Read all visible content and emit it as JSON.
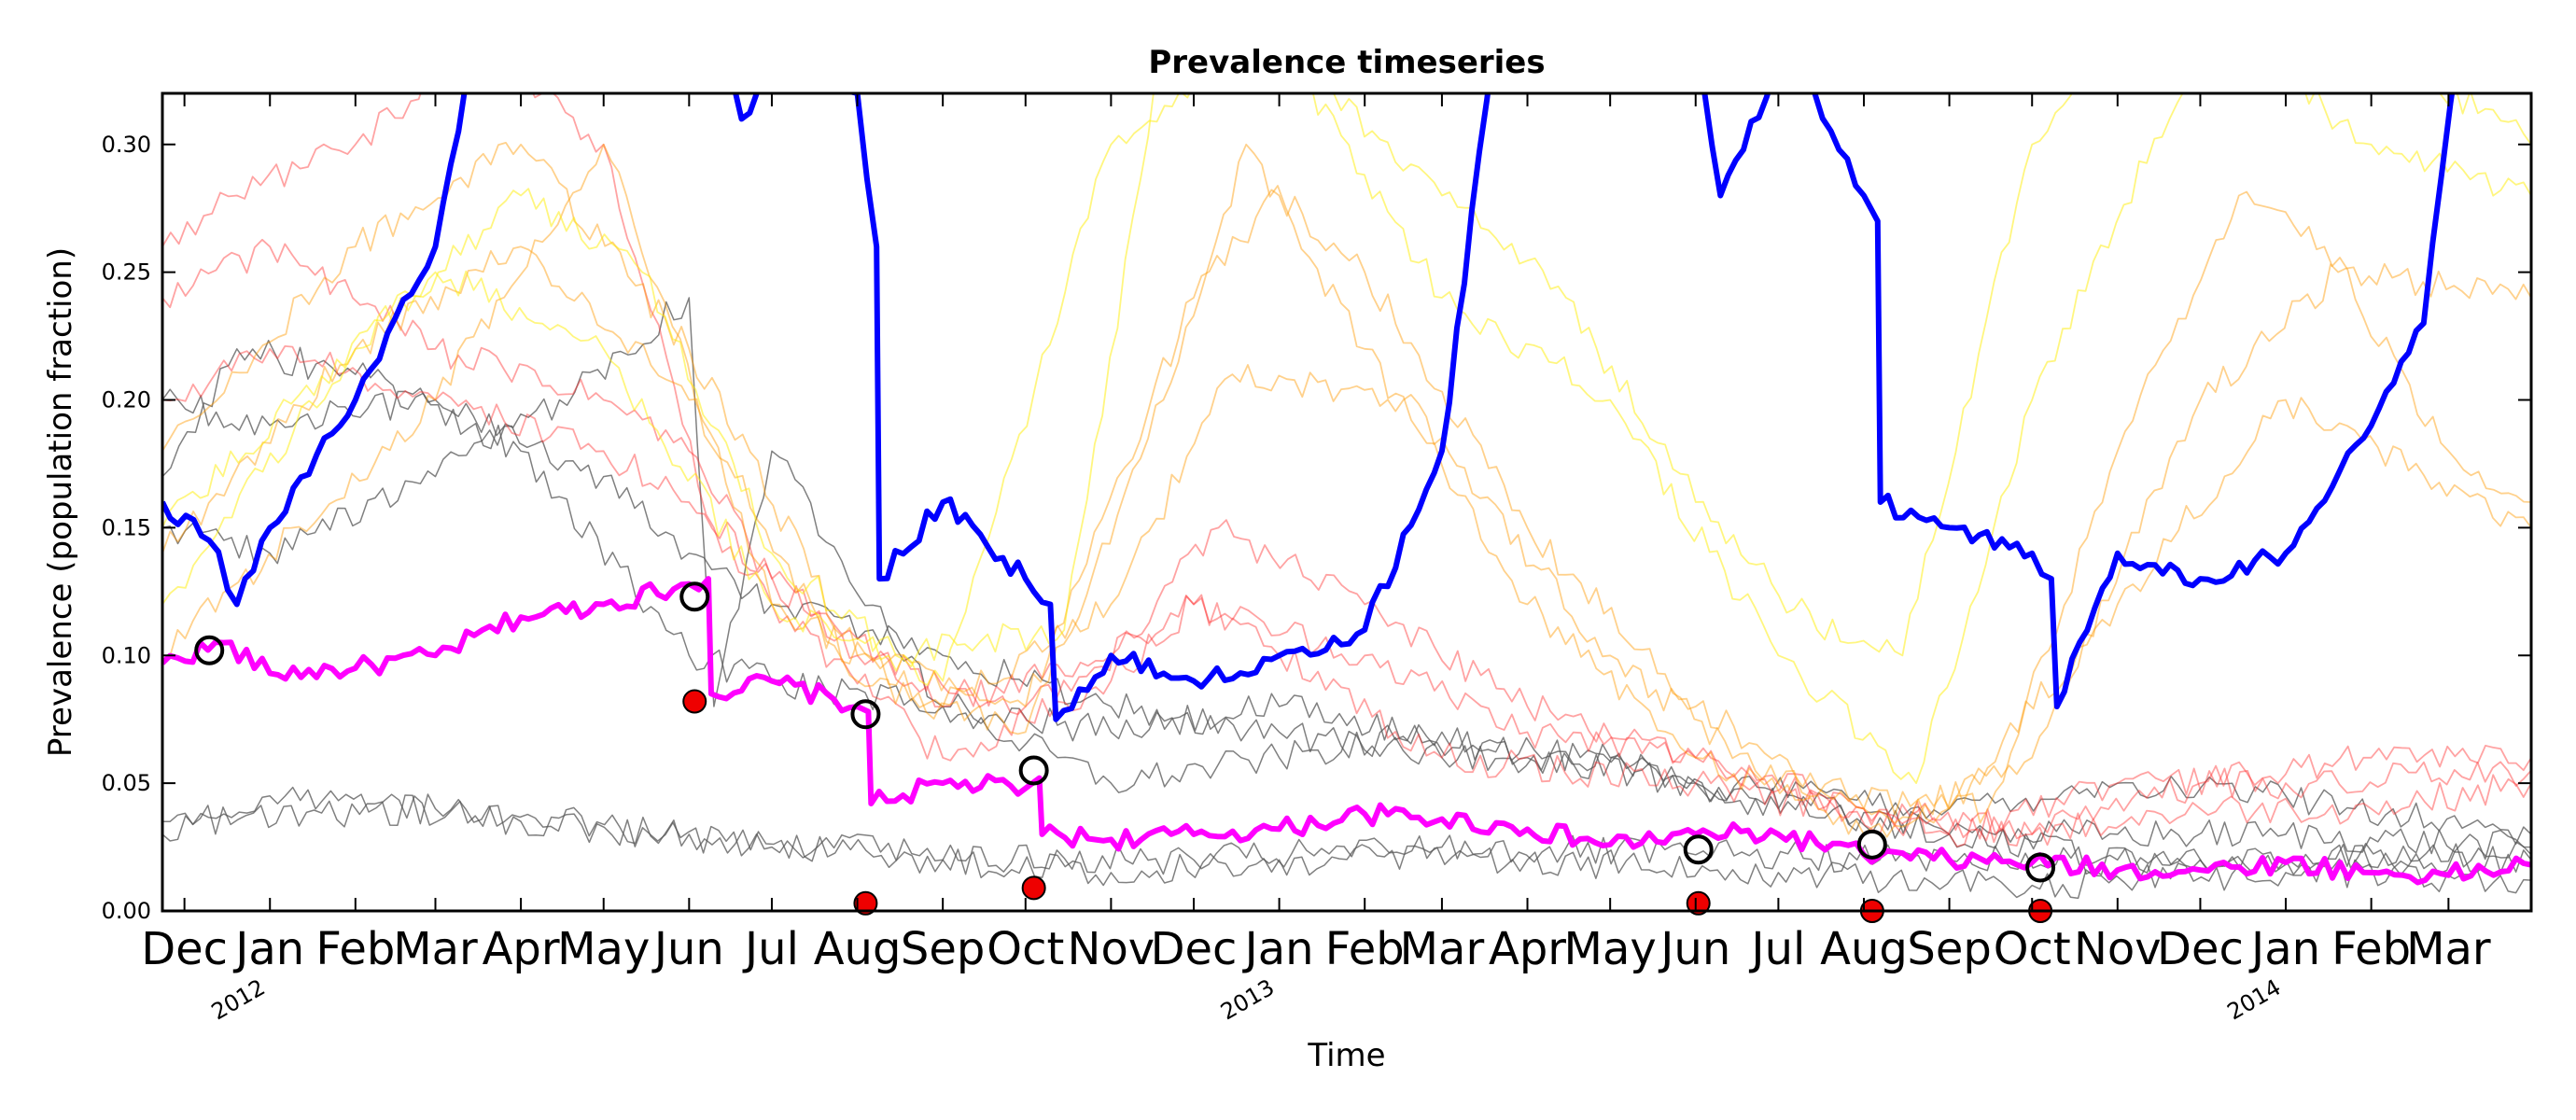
{
  "chart_data": {
    "type": "line",
    "title": "Prevalence timeseries",
    "xlabel": "Time",
    "ylabel": "Prevalence (population fraction)",
    "x_range": [
      "2011-11-23",
      "2014-03-31"
    ],
    "ylim": [
      0,
      0.32
    ],
    "yticks": [
      "0.00",
      "0.05",
      "0.10",
      "0.15",
      "0.20",
      "0.25",
      "0.30"
    ],
    "xtick_dates": [
      "2011-12-01",
      "2012-01-01",
      "2012-02-01",
      "2012-03-01",
      "2012-04-01",
      "2012-05-01",
      "2012-06-01",
      "2012-07-01",
      "2012-08-01",
      "2012-09-01",
      "2012-10-01",
      "2012-11-01",
      "2012-12-01",
      "2013-01-01",
      "2013-02-01",
      "2013-03-01",
      "2013-04-01",
      "2013-05-01",
      "2013-06-01",
      "2013-07-01",
      "2013-08-01",
      "2013-09-01",
      "2013-10-01",
      "2013-11-01",
      "2013-12-01",
      "2014-01-01",
      "2014-02-01",
      "2014-03-01"
    ],
    "xtick_labels": [
      "Dec",
      "Jan",
      "Feb",
      "Mar",
      "Apr",
      "May",
      "Jun",
      "Jul",
      "Aug",
      "Sep",
      "Oct",
      "Nov",
      "Dec",
      "Jan",
      "Feb",
      "Mar",
      "Apr",
      "May",
      "Jun",
      "Jul",
      "Aug",
      "Sep",
      "Oct",
      "Nov",
      "Dec",
      "Jan",
      "Feb",
      "Mar"
    ],
    "year_labels": [
      {
        "date": "2012-01-01",
        "text": "2012"
      },
      {
        "date": "2013-01-01",
        "text": "2013"
      },
      {
        "date": "2014-01-01",
        "text": "2014"
      }
    ],
    "grid": false,
    "legend": "none",
    "colors": {
      "magenta": "#ff00ff",
      "blue": "#0000ff",
      "gray": "#555555",
      "red": "#ff3333",
      "orange": "#ff9900",
      "yellow": "#ffee00",
      "marker_red": "#ee0000"
    },
    "series": [
      {
        "color": "#ff00ff",
        "width": 6,
        "x": [
          "2011-11-23",
          "2011-12-15",
          "2012-01-01",
          "2012-02-01",
          "2012-03-01",
          "2012-04-01",
          "2012-05-01",
          "2012-06-01",
          "2012-06-08",
          "2012-06-09",
          "2012-07-01",
          "2012-08-01",
          "2012-08-05",
          "2012-08-06",
          "2012-09-01",
          "2012-10-01",
          "2012-10-06",
          "2012-10-07",
          "2012-11-01",
          "2012-12-01",
          "2013-01-01",
          "2013-02-01",
          "2013-03-01",
          "2013-04-01",
          "2013-05-01",
          "2013-06-01",
          "2013-07-01",
          "2013-08-01",
          "2013-09-01",
          "2013-10-01",
          "2013-11-01",
          "2013-12-01",
          "2014-01-01",
          "2014-02-01",
          "2014-03-01",
          "2014-03-31"
        ],
        "y": [
          0.097,
          0.105,
          0.093,
          0.095,
          0.1,
          0.115,
          0.12,
          0.128,
          0.13,
          0.085,
          0.09,
          0.08,
          0.078,
          0.042,
          0.05,
          0.048,
          0.052,
          0.03,
          0.028,
          0.03,
          0.032,
          0.038,
          0.036,
          0.032,
          0.026,
          0.03,
          0.03,
          0.022,
          0.02,
          0.019,
          0.016,
          0.016,
          0.019,
          0.015,
          0.014,
          0.018
        ]
      },
      {
        "color": "#0000ff",
        "width": 6,
        "x": [
          "2011-11-23",
          "2011-12-10",
          "2011-12-20",
          "2012-01-01",
          "2012-02-01",
          "2012-03-01",
          "2012-03-15",
          "2012-06-12",
          "2012-06-20",
          "2012-07-05",
          "2012-08-01",
          "2012-08-08",
          "2012-08-09",
          "2012-09-01",
          "2012-10-01",
          "2012-10-10",
          "2012-10-12",
          "2012-11-01",
          "2012-12-01",
          "2013-01-01",
          "2013-02-01",
          "2013-03-01",
          "2013-03-20",
          "2013-06-01",
          "2013-06-10",
          "2013-07-05",
          "2013-08-01",
          "2013-08-06",
          "2013-08-07",
          "2013-09-01",
          "2013-10-01",
          "2013-10-08",
          "2013-10-10",
          "2013-11-01",
          "2013-12-01",
          "2014-01-01",
          "2014-02-01",
          "2014-02-20",
          "2014-03-05"
        ],
        "y": [
          0.16,
          0.145,
          0.12,
          0.15,
          0.2,
          0.26,
          0.34,
          0.34,
          0.31,
          0.34,
          0.32,
          0.26,
          0.13,
          0.16,
          0.13,
          0.12,
          0.075,
          0.1,
          0.09,
          0.1,
          0.11,
          0.18,
          0.34,
          0.34,
          0.28,
          0.34,
          0.28,
          0.27,
          0.16,
          0.15,
          0.14,
          0.13,
          0.08,
          0.14,
          0.13,
          0.14,
          0.19,
          0.23,
          0.34
        ]
      },
      {
        "color": "#555555",
        "width": 1.5,
        "opacity": 0.75,
        "x": [
          "2011-11-23",
          "2011-12-20",
          "2012-02-01",
          "2012-04-01",
          "2012-06-01",
          "2012-07-01",
          "2012-09-01",
          "2012-11-01",
          "2013-01-01",
          "2013-03-01",
          "2013-06-01",
          "2013-09-01",
          "2013-11-01",
          "2014-01-01",
          "2014-03-31"
        ],
        "y": [
          0.17,
          0.22,
          0.21,
          0.18,
          0.1,
          0.09,
          0.08,
          0.05,
          0.06,
          0.07,
          0.05,
          0.03,
          0.03,
          0.03,
          0.025
        ]
      },
      {
        "color": "#555555",
        "width": 1.5,
        "opacity": 0.75,
        "x": [
          "2011-11-23",
          "2012-01-01",
          "2012-03-01",
          "2012-04-15",
          "2012-06-01",
          "2012-06-10",
          "2012-07-01",
          "2012-09-01",
          "2012-11-01",
          "2013-01-01",
          "2013-04-01",
          "2013-06-01",
          "2013-09-01",
          "2013-11-01",
          "2014-01-01",
          "2014-03-31"
        ],
        "y": [
          0.15,
          0.14,
          0.17,
          0.2,
          0.24,
          0.08,
          0.18,
          0.08,
          0.07,
          0.08,
          0.06,
          0.05,
          0.04,
          0.05,
          0.045,
          0.03
        ]
      },
      {
        "color": "#555555",
        "width": 1.5,
        "opacity": 0.75,
        "x": [
          "2011-11-23",
          "2012-01-01",
          "2012-03-01",
          "2012-05-01",
          "2012-06-01",
          "2012-07-01",
          "2012-09-01",
          "2012-11-01",
          "2013-01-01",
          "2013-03-01",
          "2013-05-01",
          "2013-07-01",
          "2013-09-01",
          "2013-11-01",
          "2014-01-01",
          "2014-03-31"
        ],
        "y": [
          0.2,
          0.19,
          0.2,
          0.17,
          0.14,
          0.12,
          0.1,
          0.08,
          0.07,
          0.06,
          0.06,
          0.04,
          0.03,
          0.02,
          0.02,
          0.02
        ]
      },
      {
        "color": "#555555",
        "width": 1.5,
        "opacity": 0.75,
        "x": [
          "2011-11-23",
          "2012-01-01",
          "2012-04-01",
          "2012-07-01",
          "2012-08-01",
          "2012-09-01",
          "2012-11-01",
          "2013-01-01",
          "2013-04-01",
          "2013-07-01",
          "2013-10-01",
          "2014-01-01",
          "2014-03-31"
        ],
        "y": [
          0.03,
          0.045,
          0.035,
          0.025,
          0.03,
          0.02,
          0.015,
          0.02,
          0.02,
          0.015,
          0.01,
          0.015,
          0.012
        ]
      },
      {
        "color": "#555555",
        "width": 1.5,
        "opacity": 0.75,
        "x": [
          "2011-11-23",
          "2012-03-01",
          "2012-06-01",
          "2012-09-01",
          "2012-12-01",
          "2013-03-01",
          "2013-06-01",
          "2013-09-01",
          "2013-12-01",
          "2014-03-31"
        ],
        "y": [
          0.035,
          0.04,
          0.03,
          0.02,
          0.02,
          0.025,
          0.022,
          0.02,
          0.02,
          0.022
        ]
      },
      {
        "color": "#ff3333",
        "width": 1.8,
        "opacity": 0.45,
        "x": [
          "2011-11-23",
          "2011-12-20",
          "2012-02-01",
          "2012-03-15",
          "2012-05-01",
          "2012-06-10",
          "2012-07-01",
          "2012-09-01",
          "2012-11-01",
          "2012-12-01",
          "2013-01-01",
          "2013-03-01",
          "2013-06-01",
          "2013-09-01",
          "2013-11-01",
          "2014-01-01",
          "2014-03-31"
        ],
        "y": [
          0.26,
          0.28,
          0.3,
          0.34,
          0.3,
          0.15,
          0.12,
          0.06,
          0.09,
          0.12,
          0.1,
          0.06,
          0.05,
          0.03,
          0.05,
          0.05,
          0.055
        ]
      },
      {
        "color": "#ff3333",
        "width": 1.8,
        "opacity": 0.45,
        "x": [
          "2011-11-23",
          "2012-01-01",
          "2012-03-01",
          "2012-05-01",
          "2012-06-01",
          "2012-07-01",
          "2012-09-01",
          "2012-11-01",
          "2012-12-10",
          "2013-02-01",
          "2013-04-01",
          "2013-06-01",
          "2013-08-01",
          "2013-10-01",
          "2013-12-01",
          "2014-02-01",
          "2014-03-31"
        ],
        "y": [
          0.24,
          0.26,
          0.22,
          0.2,
          0.18,
          0.13,
          0.08,
          0.1,
          0.15,
          0.12,
          0.08,
          0.06,
          0.04,
          0.03,
          0.05,
          0.06,
          0.06
        ]
      },
      {
        "color": "#ff3333",
        "width": 1.8,
        "opacity": 0.45,
        "x": [
          "2011-11-23",
          "2012-01-01",
          "2012-03-01",
          "2012-05-01",
          "2012-06-01",
          "2012-08-01",
          "2012-10-01",
          "2012-12-01",
          "2013-02-01",
          "2013-04-01",
          "2013-06-01",
          "2013-08-01",
          "2013-10-01",
          "2013-12-01",
          "2014-02-01",
          "2014-03-31"
        ],
        "y": [
          0.2,
          0.22,
          0.2,
          0.18,
          0.16,
          0.1,
          0.08,
          0.12,
          0.1,
          0.07,
          0.06,
          0.04,
          0.03,
          0.04,
          0.04,
          0.05
        ]
      },
      {
        "color": "#ff9900",
        "width": 1.8,
        "opacity": 0.45,
        "x": [
          "2011-11-23",
          "2012-02-01",
          "2012-04-01",
          "2012-06-01",
          "2012-08-01",
          "2012-10-01",
          "2012-12-01",
          "2013-01-01",
          "2013-02-01",
          "2013-04-01",
          "2013-06-01",
          "2013-08-01",
          "2013-09-15",
          "2013-11-01",
          "2013-12-15",
          "2014-01-15",
          "2014-03-01",
          "2014-03-31"
        ],
        "y": [
          0.18,
          0.26,
          0.3,
          0.22,
          0.1,
          0.08,
          0.24,
          0.28,
          0.25,
          0.15,
          0.08,
          0.04,
          0.04,
          0.18,
          0.28,
          0.26,
          0.18,
          0.16
        ]
      },
      {
        "color": "#ff9900",
        "width": 1.8,
        "opacity": 0.45,
        "x": [
          "2011-11-23",
          "2012-02-01",
          "2012-04-01",
          "2012-06-01",
          "2012-08-01",
          "2012-10-01",
          "2012-11-20",
          "2012-12-20",
          "2013-02-01",
          "2013-04-01",
          "2013-06-01",
          "2013-08-01",
          "2013-10-01",
          "2013-12-01",
          "2014-01-20",
          "2014-03-31"
        ],
        "y": [
          0.14,
          0.22,
          0.26,
          0.2,
          0.09,
          0.07,
          0.2,
          0.3,
          0.22,
          0.12,
          0.06,
          0.03,
          0.06,
          0.2,
          0.25,
          0.24
        ]
      },
      {
        "color": "#ff9900",
        "width": 1.8,
        "opacity": 0.45,
        "x": [
          "2011-11-23",
          "2012-03-01",
          "2012-05-01",
          "2012-07-01",
          "2012-09-01",
          "2012-11-01",
          "2012-12-15",
          "2013-02-15",
          "2013-05-01",
          "2013-07-01",
          "2013-09-01",
          "2013-11-01",
          "2014-01-01",
          "2014-03-31"
        ],
        "y": [
          0.1,
          0.2,
          0.3,
          0.12,
          0.08,
          0.12,
          0.21,
          0.2,
          0.1,
          0.05,
          0.04,
          0.12,
          0.2,
          0.15
        ]
      },
      {
        "color": "#ffee00",
        "width": 1.8,
        "opacity": 0.5,
        "x": [
          "2011-11-23",
          "2012-02-01",
          "2012-04-01",
          "2012-05-15",
          "2012-07-01",
          "2012-08-15",
          "2012-10-15",
          "2012-11-20",
          "2013-01-01",
          "2013-03-01",
          "2013-04-15",
          "2013-06-01",
          "2013-07-15",
          "2013-08-15",
          "2013-10-01",
          "2013-11-01",
          "2013-12-15",
          "2014-02-01",
          "2014-03-31"
        ],
        "y": [
          0.12,
          0.22,
          0.28,
          0.25,
          0.14,
          0.1,
          0.11,
          0.34,
          0.34,
          0.28,
          0.24,
          0.16,
          0.11,
          0.1,
          0.3,
          0.34,
          0.34,
          0.3,
          0.28
        ]
      },
      {
        "color": "#ffee00",
        "width": 1.8,
        "opacity": 0.5,
        "x": [
          "2011-11-23",
          "2012-03-01",
          "2012-05-01",
          "2012-07-01",
          "2012-09-01",
          "2012-11-01",
          "2013-01-01",
          "2013-03-01",
          "2013-05-01",
          "2013-07-01",
          "2013-08-20",
          "2013-10-01",
          "2013-12-01",
          "2014-02-01",
          "2014-03-31"
        ],
        "y": [
          0.15,
          0.25,
          0.22,
          0.12,
          0.09,
          0.3,
          0.34,
          0.24,
          0.2,
          0.1,
          0.05,
          0.2,
          0.34,
          0.34,
          0.3
        ]
      }
    ],
    "markers": [
      {
        "type": "open-circle",
        "x": "2011-12-10",
        "y": 0.102
      },
      {
        "type": "open-circle",
        "x": "2012-06-03",
        "y": 0.123
      },
      {
        "type": "open-circle",
        "x": "2012-08-04",
        "y": 0.077
      },
      {
        "type": "open-circle",
        "x": "2012-10-04",
        "y": 0.055
      },
      {
        "type": "open-circle",
        "x": "2013-06-02",
        "y": 0.024
      },
      {
        "type": "open-circle",
        "x": "2013-08-04",
        "y": 0.026
      },
      {
        "type": "open-circle",
        "x": "2013-10-04",
        "y": 0.017
      },
      {
        "type": "filled-circle",
        "x": "2012-06-03",
        "y": 0.082
      },
      {
        "type": "filled-circle",
        "x": "2012-08-04",
        "y": 0.003
      },
      {
        "type": "filled-circle",
        "x": "2012-10-04",
        "y": 0.009
      },
      {
        "type": "filled-circle",
        "x": "2013-06-02",
        "y": 0.003
      },
      {
        "type": "filled-circle",
        "x": "2013-08-04",
        "y": 0.0
      },
      {
        "type": "filled-circle",
        "x": "2013-10-04",
        "y": 0.0
      }
    ]
  }
}
